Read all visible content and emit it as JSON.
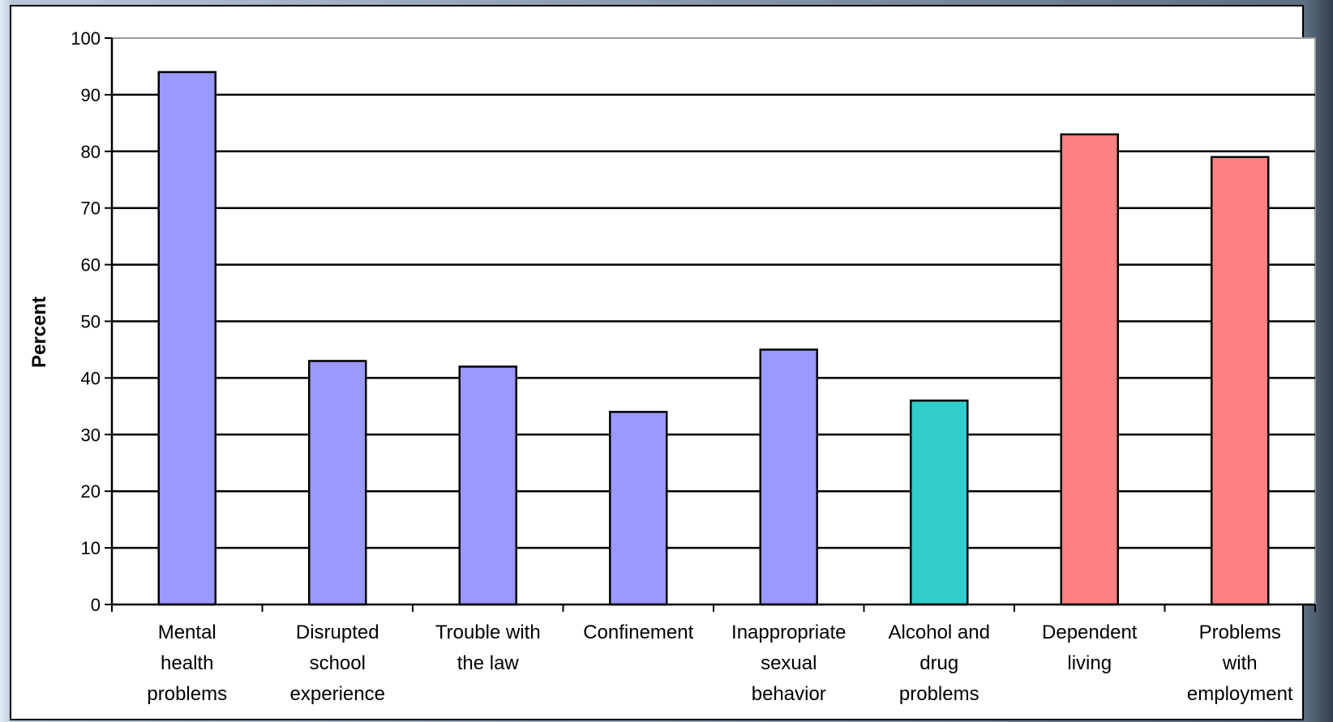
{
  "chart_data": {
    "type": "bar",
    "title": "",
    "xlabel": "",
    "ylabel": "Percent",
    "ylim": [
      0,
      100
    ],
    "yticks": [
      0,
      10,
      20,
      30,
      40,
      50,
      60,
      70,
      80,
      90,
      100
    ],
    "grid": true,
    "categories": [
      [
        "Mental",
        "health",
        "problems"
      ],
      [
        "Disrupted",
        "school",
        "experience"
      ],
      [
        "Trouble with",
        "the law"
      ],
      [
        "Confinement"
      ],
      [
        "Inappropriate",
        "sexual",
        "behavior"
      ],
      [
        "Alcohol and",
        "drug",
        "problems"
      ],
      [
        "Dependent",
        "living"
      ],
      [
        "Problems",
        "with",
        "employment"
      ]
    ],
    "values": [
      94,
      43,
      42,
      34,
      45,
      36,
      83,
      79
    ],
    "colors": [
      "#9999ff",
      "#9999ff",
      "#9999ff",
      "#9999ff",
      "#9999ff",
      "#33cccc",
      "#ff8080",
      "#ff8080"
    ]
  }
}
